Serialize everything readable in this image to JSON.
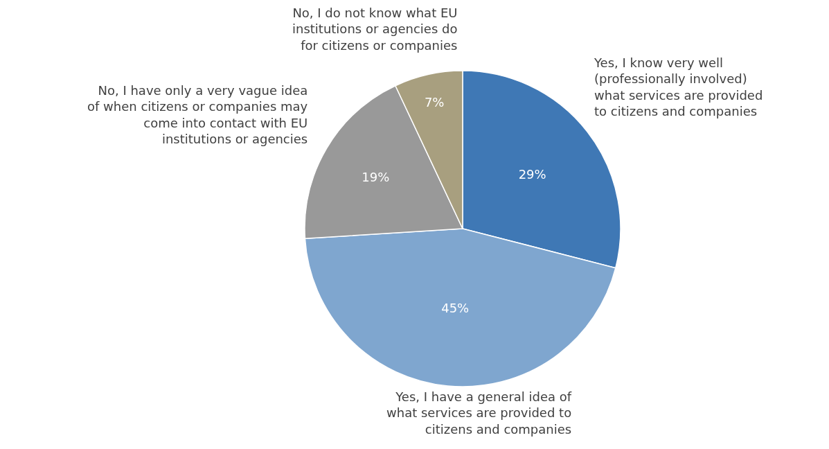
{
  "chart_data": {
    "type": "pie",
    "categories": [
      "Yes, I know very well (professionally involved) what services are provided to citizens and companies",
      "Yes, I have a general idea of what services are provided to citizens and companies",
      "No, I have only a very vague idea of when citizens or companies may come into contact with EU institutions or agencies",
      "No, I do not know what EU institutions or agencies do for citizens or companies"
    ],
    "values": [
      29,
      45,
      19,
      7
    ],
    "value_labels": [
      "29%",
      "45%",
      "19%",
      "7%"
    ],
    "colors": [
      "#3f78b5",
      "#7fa6cf",
      "#999999",
      "#a89f7f"
    ]
  }
}
